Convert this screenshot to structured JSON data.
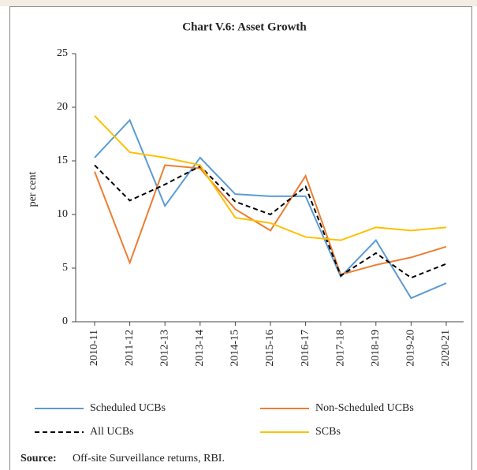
{
  "chart_data": {
    "type": "line",
    "title": "Chart V.6: Asset Growth",
    "ylabel": "per cent",
    "categories": [
      "2010-11",
      "2011-12",
      "2012-13",
      "2013-14",
      "2014-15",
      "2015-16",
      "2016-17",
      "2017-18",
      "2018-19",
      "2019-20",
      "2020-21"
    ],
    "series": [
      {
        "name": "Scheduled UCBs",
        "color": "#5b9bd5",
        "dashed": false,
        "values": [
          15.3,
          18.8,
          10.8,
          15.3,
          11.9,
          11.7,
          11.7,
          4.2,
          7.6,
          2.2,
          3.6
        ]
      },
      {
        "name": "Non-Scheduled UCBs",
        "color": "#ed7d31",
        "dashed": false,
        "values": [
          14.0,
          5.5,
          14.6,
          14.3,
          10.5,
          8.5,
          13.6,
          4.4,
          5.3,
          6.0,
          7.0
        ]
      },
      {
        "name": "All UCBs",
        "color": "#000000",
        "dashed": true,
        "values": [
          14.6,
          11.3,
          12.8,
          14.5,
          11.2,
          10.0,
          12.6,
          4.3,
          6.4,
          4.1,
          5.4
        ]
      },
      {
        "name": "SCBs",
        "color": "#ffc000",
        "dashed": false,
        "values": [
          19.2,
          15.8,
          15.3,
          14.6,
          9.7,
          9.2,
          7.9,
          7.6,
          8.8,
          8.5,
          8.8
        ]
      }
    ],
    "ylim": [
      0,
      25
    ],
    "yticks": [
      0,
      5,
      10,
      15,
      20,
      25
    ],
    "grid": false,
    "source": {
      "label": "Source:",
      "text": "Off-site Surveillance returns, RBI."
    }
  }
}
